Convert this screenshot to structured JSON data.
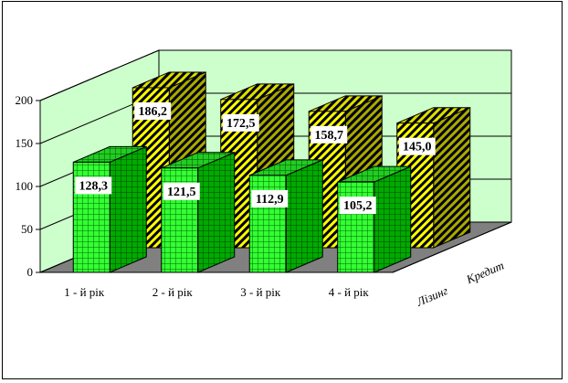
{
  "chart_data": {
    "type": "bar",
    "subtype": "3d-clustered-depth",
    "categories": [
      "1 - й рік",
      "2 - й рік",
      "3 - й рік",
      "4 - й рік"
    ],
    "series": [
      {
        "name": "Лізинг",
        "values": [
          128.3,
          121.5,
          112.9,
          105.2
        ],
        "labels": [
          "128,3",
          "121,5",
          "112,9",
          "105,2"
        ],
        "color": "#33cc33"
      },
      {
        "name": "Кредит",
        "values": [
          186.2,
          172.5,
          158.7,
          145.0
        ],
        "labels": [
          "186,2",
          "172,5",
          "158,7",
          "145,0"
        ],
        "color": "#ffff00"
      }
    ],
    "ylim": [
      0,
      200
    ],
    "yticks": [
      "0",
      "50",
      "100",
      "150",
      "200"
    ],
    "grid": true,
    "title": "",
    "xlabel": "",
    "ylabel": ""
  },
  "colors": {
    "wall": "#ccffcc",
    "floor": "#808080",
    "green_front": "#33ff33",
    "green_side": "#009900",
    "green_top": "#22bb22",
    "yellow_front": "#ffff66",
    "yellow_side": "#999900",
    "yellow_top": "#cccc00"
  }
}
